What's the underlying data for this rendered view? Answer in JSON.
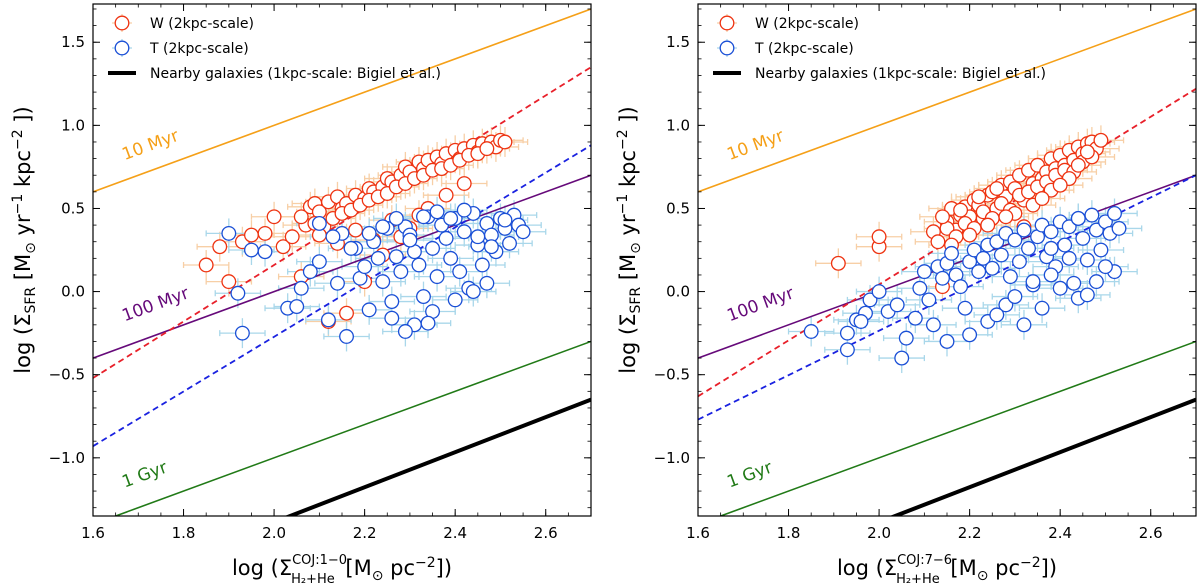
{
  "colors": {
    "w_marker": "#ee3311",
    "t_marker": "#1a4fd6",
    "w_err": "#f7cfa6",
    "t_err": "#a9d7ea",
    "line_10myr": "#f5a018",
    "line_100myr": "#660a7a",
    "line_1gyr": "#217a17",
    "fit_w": "#e8202a",
    "fit_t": "#1a22e0",
    "nearby": "#000000"
  },
  "legend": {
    "w": "W (2kpc-scale)",
    "t": "T  (2kpc-scale)",
    "nearby": "Nearby galaxies (1kpc-scale: Bigiel et al.)"
  },
  "chart_data": [
    {
      "type": "scatter",
      "panel": "left",
      "ylabel": "log (ΣSFR [M⊙ yr⁻¹ kpc⁻² ])",
      "ylabel_parts": {
        "prefix": "log (Σ",
        "sub": "SFR",
        "unit_a": " [M",
        "sun": "⊙",
        "unit_b": " yr",
        "exp1": "−1",
        "unit_c": " kpc",
        "exp2": "−2",
        "suffix": " ])"
      },
      "xlabel": "log (Σ H2+He COJ:1−0 [M⊙ pc⁻²])",
      "xlabel_parts": {
        "prefix": "log (Σ",
        "sup": "COJ:1−0",
        "sub": "H₂+He",
        "unit_a": " [M",
        "sun": "⊙",
        "unit_b": " pc",
        "exp": "−2",
        "suffix": "])"
      },
      "xlim": [
        1.6,
        2.7
      ],
      "ylim": [
        -1.35,
        1.73
      ],
      "xticks": [
        1.6,
        1.8,
        2.0,
        2.2,
        2.4,
        2.6
      ],
      "xtick_labels": [
        "1.6",
        "1.8",
        "2.0",
        "2.2",
        "2.4",
        "2.6"
      ],
      "yticks": [
        -1.0,
        -0.5,
        0.0,
        0.5,
        1.0,
        1.5
      ],
      "ytick_labels": [
        "−1.0",
        "−0.5",
        "0.0",
        "0.5",
        "1.0",
        "1.5"
      ],
      "lines": [
        {
          "name": "10 Myr",
          "label": "10 Myr",
          "color_key": "line_10myr",
          "x": [
            1.6,
            2.7
          ],
          "y": [
            0.6,
            1.7
          ],
          "label_at": [
            1.67,
            0.79
          ],
          "dash": false,
          "width": 1.6
        },
        {
          "name": "100 Myr",
          "label": "100 Myr",
          "color_key": "line_100myr",
          "x": [
            1.6,
            2.7
          ],
          "y": [
            -0.4,
            0.7
          ],
          "label_at": [
            1.67,
            -0.18
          ],
          "dash": false,
          "width": 1.6
        },
        {
          "name": "1 Gyr",
          "label": "1 Gyr",
          "color_key": "line_1gyr",
          "x": [
            1.6,
            2.7
          ],
          "y": [
            -1.4,
            -0.3
          ],
          "label_at": [
            1.67,
            -1.18
          ],
          "dash": false,
          "width": 1.6
        },
        {
          "name": "fit W",
          "label": "",
          "color_key": "fit_w",
          "x": [
            1.6,
            2.7
          ],
          "y": [
            -0.52,
            1.35
          ],
          "dash": true,
          "width": 1.8
        },
        {
          "name": "fit T",
          "label": "",
          "color_key": "fit_t",
          "x": [
            1.6,
            2.7
          ],
          "y": [
            -0.93,
            0.88
          ],
          "dash": true,
          "width": 1.8
        },
        {
          "name": "Nearby galaxies",
          "label": "",
          "color_key": "nearby",
          "x": [
            1.95,
            2.7
          ],
          "y": [
            -1.44,
            -0.65
          ],
          "dash": false,
          "width": 4
        }
      ],
      "series": [
        {
          "name": "W (2kpc-scale)",
          "color_key": "w_marker",
          "err_key": "w_err",
          "x_err": 0.05,
          "y_err": 0.09,
          "x": [
            1.85,
            1.88,
            1.9,
            1.93,
            1.95,
            1.98,
            2.0,
            2.02,
            2.04,
            2.06,
            2.07,
            2.08,
            2.09,
            2.1,
            2.12,
            2.14,
            2.15,
            2.16,
            2.18,
            2.2,
            2.21,
            2.22,
            2.24,
            2.25,
            2.26,
            2.28,
            2.29,
            2.3,
            2.32,
            2.33,
            2.34,
            2.36,
            2.37,
            2.38,
            2.4,
            2.41,
            2.42,
            2.44,
            2.45,
            2.46,
            2.48,
            2.49,
            2.5,
            2.51,
            2.06,
            2.09,
            2.11,
            2.13,
            2.15,
            2.17,
            2.19,
            2.21,
            2.23,
            2.25,
            2.27,
            2.29,
            2.31,
            2.33,
            2.35,
            2.37,
            2.39,
            2.41,
            2.43,
            2.45,
            2.47,
            2.1,
            2.14,
            2.18,
            2.22,
            2.26,
            2.3,
            2.34,
            2.38,
            2.42,
            2.12,
            2.16,
            2.2,
            2.24,
            2.28,
            2.32
          ],
          "y": [
            0.16,
            0.27,
            0.06,
            0.3,
            0.34,
            0.35,
            0.45,
            0.27,
            0.33,
            0.09,
            0.4,
            0.51,
            0.53,
            0.48,
            0.54,
            0.57,
            0.5,
            0.53,
            0.58,
            0.56,
            0.62,
            0.6,
            0.63,
            0.68,
            0.66,
            0.7,
            0.75,
            0.72,
            0.78,
            0.74,
            0.79,
            0.81,
            0.77,
            0.83,
            0.85,
            0.8,
            0.86,
            0.88,
            0.84,
            0.89,
            0.9,
            0.87,
            0.91,
            0.9,
            0.45,
            0.41,
            0.39,
            0.44,
            0.47,
            0.49,
            0.52,
            0.55,
            0.57,
            0.59,
            0.63,
            0.65,
            0.68,
            0.7,
            0.73,
            0.74,
            0.76,
            0.79,
            0.82,
            0.83,
            0.86,
            0.34,
            0.29,
            0.37,
            0.31,
            0.43,
            0.38,
            0.5,
            0.58,
            0.65,
            -0.18,
            -0.13,
            0.06,
            0.22,
            0.33,
            0.46
          ]
        },
        {
          "name": "T  (2kpc-scale)",
          "color_key": "t_marker",
          "err_key": "t_err",
          "x_err": 0.05,
          "y_err": 0.09,
          "x": [
            1.9,
            1.92,
            1.93,
            1.95,
            1.98,
            2.03,
            2.05,
            2.06,
            2.08,
            2.1,
            2.12,
            2.14,
            2.15,
            2.16,
            2.18,
            2.19,
            2.2,
            2.21,
            2.22,
            2.23,
            2.24,
            2.25,
            2.26,
            2.27,
            2.28,
            2.29,
            2.3,
            2.31,
            2.32,
            2.33,
            2.34,
            2.35,
            2.36,
            2.37,
            2.38,
            2.39,
            2.4,
            2.41,
            2.42,
            2.43,
            2.44,
            2.45,
            2.46,
            2.47,
            2.48,
            2.49,
            2.5,
            2.51,
            2.52,
            2.53,
            2.54,
            2.55,
            2.1,
            2.13,
            2.17,
            2.21,
            2.24,
            2.27,
            2.3,
            2.33,
            2.36,
            2.39,
            2.42,
            2.45,
            2.48,
            2.51,
            2.26,
            2.31,
            2.35,
            2.4,
            2.44,
            2.47,
            2.29,
            2.34
          ],
          "y": [
            0.35,
            -0.01,
            -0.25,
            0.25,
            0.24,
            -0.1,
            -0.09,
            0.02,
            0.12,
            0.18,
            -0.17,
            0.05,
            0.35,
            -0.27,
            0.26,
            0.08,
            0.15,
            -0.11,
            0.3,
            0.2,
            0.06,
            0.38,
            -0.06,
            0.21,
            0.12,
            0.39,
            0.34,
            0.24,
            0.16,
            -0.03,
            0.45,
            0.26,
            0.09,
            0.4,
            0.32,
            0.2,
            0.44,
            0.12,
            0.36,
            0.02,
            0.47,
            0.28,
            0.16,
            0.41,
            0.34,
            0.24,
            0.44,
            0.38,
            0.29,
            0.46,
            0.4,
            0.36,
            0.41,
            0.33,
            0.26,
            0.35,
            0.39,
            0.44,
            0.31,
            0.45,
            0.48,
            0.44,
            0.49,
            0.33,
            0.27,
            0.43,
            -0.16,
            -0.2,
            -0.12,
            -0.05,
            0.0,
            0.05,
            -0.24,
            -0.19
          ]
        }
      ]
    },
    {
      "type": "scatter",
      "panel": "right",
      "ylabel": "log (ΣSFR [M⊙ yr⁻¹ kpc⁻² ])",
      "ylabel_parts": {
        "prefix": "log (Σ",
        "sub": "SFR",
        "unit_a": " [M",
        "sun": "⊙",
        "unit_b": " yr",
        "exp1": "−1",
        "unit_c": " kpc",
        "exp2": "−2",
        "suffix": " ])"
      },
      "xlabel": "log (Σ H2+He COJ:7−6 [M⊙ pc⁻²])",
      "xlabel_parts": {
        "prefix": "log (Σ",
        "sup": "COJ:7−6",
        "sub": "H₂+He",
        "unit_a": " [M",
        "sun": "⊙",
        "unit_b": " pc",
        "exp": "−2",
        "suffix": "])"
      },
      "xlim": [
        1.6,
        2.7
      ],
      "ylim": [
        -1.35,
        1.73
      ],
      "xticks": [
        1.6,
        1.8,
        2.0,
        2.2,
        2.4,
        2.6
      ],
      "xtick_labels": [
        "1.6",
        "1.8",
        "2.0",
        "2.2",
        "2.4",
        "2.6"
      ],
      "yticks": [
        -1.0,
        -0.5,
        0.0,
        0.5,
        1.0,
        1.5
      ],
      "ytick_labels": [
        "−1.0",
        "−0.5",
        "0.0",
        "0.5",
        "1.0",
        "1.5"
      ],
      "lines": [
        {
          "name": "10 Myr",
          "label": "10 Myr",
          "color_key": "line_10myr",
          "x": [
            1.6,
            2.7
          ],
          "y": [
            0.6,
            1.7
          ],
          "label_at": [
            1.67,
            0.79
          ],
          "dash": false,
          "width": 1.6
        },
        {
          "name": "100 Myr",
          "label": "100 Myr",
          "color_key": "line_100myr",
          "x": [
            1.6,
            2.7
          ],
          "y": [
            -0.4,
            0.7
          ],
          "label_at": [
            1.67,
            -0.18
          ],
          "dash": false,
          "width": 1.6
        },
        {
          "name": "1 Gyr",
          "label": "1 Gyr",
          "color_key": "line_1gyr",
          "x": [
            1.6,
            2.7
          ],
          "y": [
            -1.4,
            -0.3
          ],
          "label_at": [
            1.67,
            -1.18
          ],
          "dash": false,
          "width": 1.6
        },
        {
          "name": "fit W",
          "label": "",
          "color_key": "fit_w",
          "x": [
            1.6,
            2.7
          ],
          "y": [
            -0.63,
            1.22
          ],
          "dash": true,
          "width": 1.8
        },
        {
          "name": "fit T",
          "label": "",
          "color_key": "fit_t",
          "x": [
            1.6,
            2.7
          ],
          "y": [
            -0.77,
            0.7
          ],
          "dash": true,
          "width": 1.8
        },
        {
          "name": "Nearby galaxies",
          "label": "",
          "color_key": "nearby",
          "x": [
            1.95,
            2.7
          ],
          "y": [
            -1.44,
            -0.65
          ],
          "dash": false,
          "width": 4
        }
      ],
      "series": [
        {
          "name": "W (2kpc-scale)",
          "color_key": "w_marker",
          "err_key": "w_err",
          "x_err": 0.05,
          "y_err": 0.09,
          "x": [
            1.91,
            2.0,
            2.0,
            2.12,
            2.14,
            2.15,
            2.16,
            2.17,
            2.18,
            2.19,
            2.2,
            2.21,
            2.22,
            2.23,
            2.24,
            2.25,
            2.26,
            2.27,
            2.28,
            2.29,
            2.3,
            2.31,
            2.32,
            2.33,
            2.34,
            2.35,
            2.36,
            2.37,
            2.38,
            2.39,
            2.4,
            2.41,
            2.42,
            2.43,
            2.44,
            2.45,
            2.46,
            2.47,
            2.48,
            2.49,
            2.13,
            2.15,
            2.17,
            2.19,
            2.21,
            2.23,
            2.25,
            2.27,
            2.29,
            2.31,
            2.33,
            2.35,
            2.37,
            2.39,
            2.41,
            2.43,
            2.45,
            2.47,
            2.14,
            2.18,
            2.22,
            2.26,
            2.3,
            2.34,
            2.38,
            2.42,
            2.46,
            2.16,
            2.2,
            2.24,
            2.28,
            2.32,
            2.36,
            2.4,
            2.44
          ],
          "y": [
            0.17,
            0.27,
            0.33,
            0.36,
            0.03,
            0.42,
            0.5,
            0.37,
            0.46,
            0.51,
            0.45,
            0.55,
            0.52,
            0.44,
            0.58,
            0.6,
            0.5,
            0.64,
            0.57,
            0.66,
            0.62,
            0.7,
            0.55,
            0.73,
            0.65,
            0.76,
            0.68,
            0.72,
            0.8,
            0.74,
            0.82,
            0.76,
            0.85,
            0.79,
            0.87,
            0.83,
            0.89,
            0.9,
            0.86,
            0.91,
            0.3,
            0.38,
            0.33,
            0.41,
            0.38,
            0.48,
            0.44,
            0.53,
            0.49,
            0.58,
            0.6,
            0.63,
            0.66,
            0.7,
            0.73,
            0.72,
            0.78,
            0.81,
            0.45,
            0.49,
            0.57,
            0.62,
            0.47,
            0.52,
            0.61,
            0.68,
            0.84,
            0.28,
            0.34,
            0.4,
            0.45,
            0.39,
            0.56,
            0.64,
            0.76
          ]
        },
        {
          "name": "T  (2kpc-scale)",
          "color_key": "t_marker",
          "err_key": "t_err",
          "x_err": 0.05,
          "y_err": 0.09,
          "x": [
            1.85,
            1.93,
            1.95,
            1.97,
            2.02,
            2.05,
            2.06,
            2.08,
            2.09,
            2.1,
            2.12,
            2.13,
            2.14,
            2.15,
            2.16,
            2.17,
            2.18,
            2.19,
            2.2,
            2.21,
            2.22,
            2.23,
            2.24,
            2.25,
            2.26,
            2.27,
            2.28,
            2.29,
            2.3,
            2.31,
            2.32,
            2.33,
            2.34,
            2.35,
            2.36,
            2.37,
            2.38,
            2.39,
            2.4,
            2.41,
            2.42,
            2.43,
            2.44,
            2.45,
            2.46,
            2.47,
            2.48,
            2.49,
            2.5,
            2.51,
            2.52,
            2.53,
            1.93,
            1.96,
            1.98,
            2.0,
            2.04,
            2.11,
            2.15,
            2.2,
            2.24,
            2.28,
            2.32,
            2.36,
            2.4,
            2.44,
            2.48,
            2.52,
            2.26,
            2.3,
            2.34,
            2.38,
            2.42,
            2.46,
            2.5,
            2.38,
            2.44
          ],
          "y": [
            -0.24,
            -0.35,
            -0.17,
            -0.13,
            -0.12,
            -0.4,
            -0.28,
            -0.16,
            0.02,
            0.12,
            -0.2,
            0.15,
            0.08,
            0.17,
            0.23,
            0.1,
            0.03,
            -0.1,
            0.18,
            0.25,
            0.12,
            0.2,
            0.28,
            0.14,
            0.3,
            0.22,
            0.35,
            0.09,
            0.31,
            0.18,
            0.37,
            0.26,
            0.04,
            0.33,
            0.4,
            0.21,
            0.36,
            0.15,
            0.42,
            0.28,
            0.39,
            0.05,
            0.44,
            0.32,
            0.19,
            0.46,
            0.37,
            0.25,
            0.42,
            0.35,
            0.47,
            0.38,
            -0.25,
            -0.18,
            -0.05,
            0.0,
            -0.08,
            -0.05,
            -0.3,
            -0.26,
            -0.18,
            -0.08,
            -0.2,
            -0.1,
            0.02,
            -0.04,
            0.06,
            0.12,
            -0.14,
            -0.03,
            0.06,
            0.1,
            0.2,
            -0.02,
            0.15,
            0.26,
            0.44
          ]
        }
      ]
    }
  ]
}
